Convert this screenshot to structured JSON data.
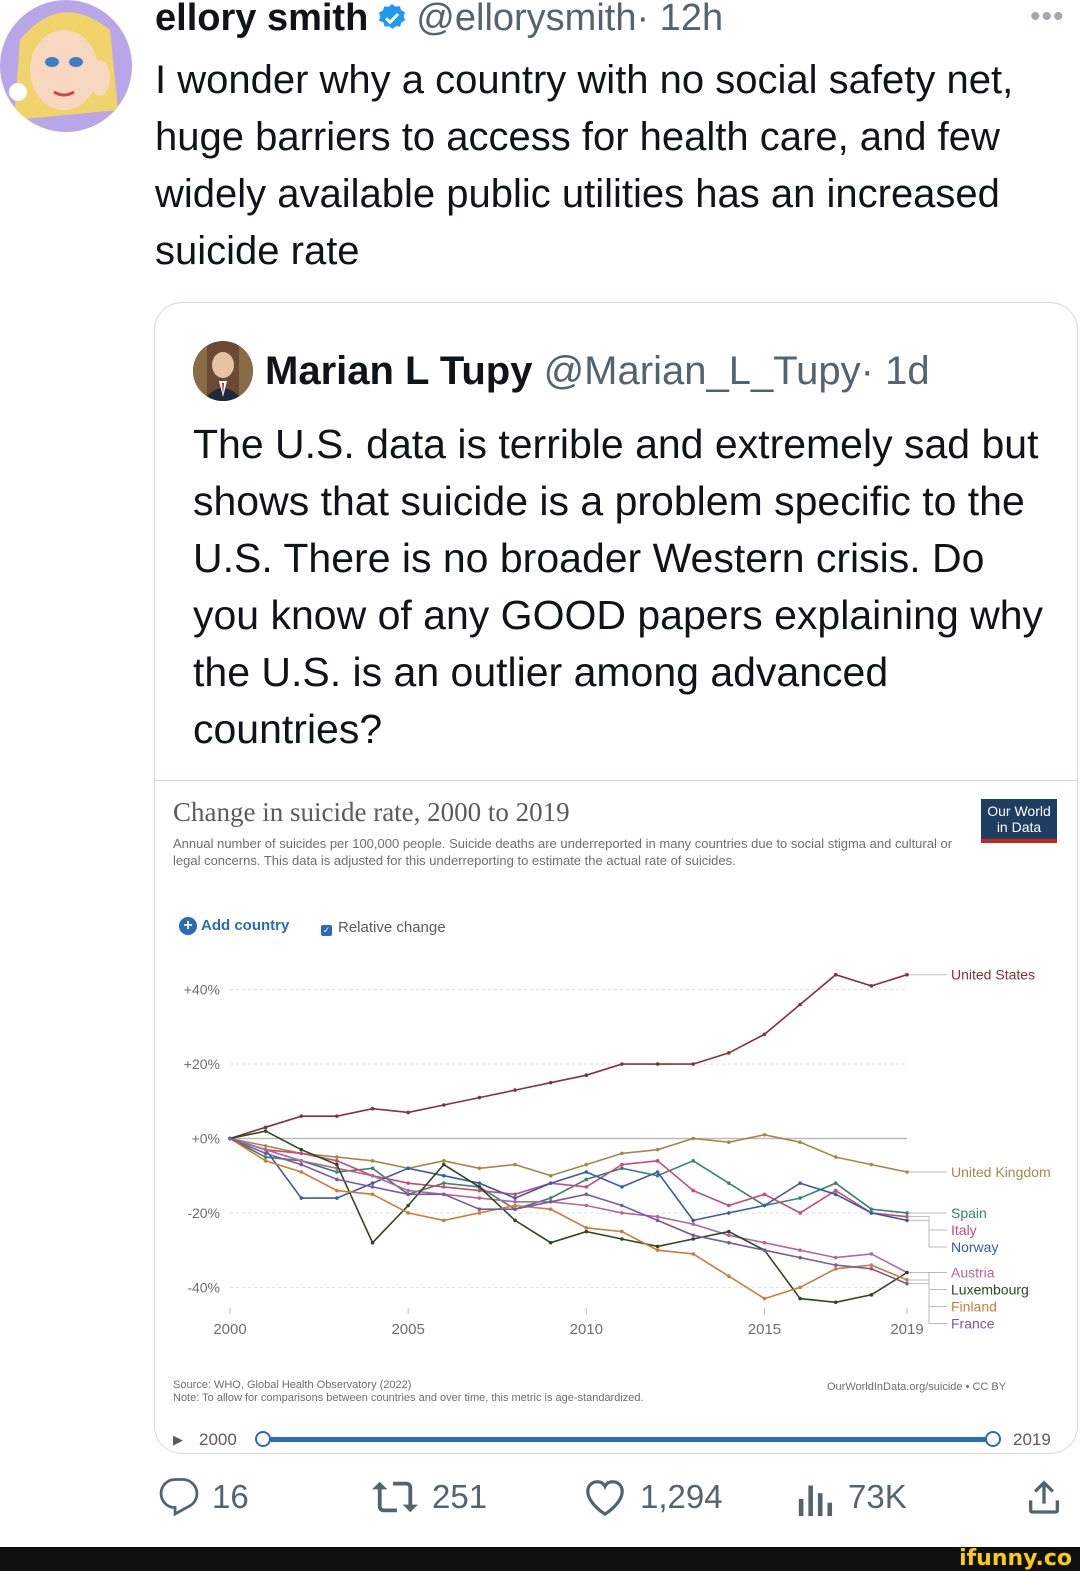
{
  "tweet": {
    "name": "ellory smith",
    "handle": "@ellorysmith",
    "time": "· 12h",
    "more": "•••",
    "text": "I wonder why a country with no social safety net, huge barriers to access for health care, and few widely available public utilities has an increased suicide rate"
  },
  "quote": {
    "name": "Marian L Tupy",
    "handle": "@Marian_L_Tupy",
    "time": "· 1d",
    "text": "The U.S. data is terrible and extremely sad but shows that suicide is a problem specific to the U.S. There is no broader Western crisis. Do you know of any GOOD papers explaining why the U.S. is an outlier among advanced countries?"
  },
  "owid": {
    "title": "Change in suicide rate, 2000 to 2019",
    "subtitle": "Annual number of suicides per 100,000 people. Suicide deaths are underreported in many countries due to social stigma and cultural or legal concerns. This data is adjusted for this underreporting to estimate the actual rate of suicides.",
    "logo_line1": "Our World",
    "logo_line2": "in Data",
    "add_country": "Add country",
    "relative_change": "Relative change",
    "source": "Source: WHO, Global Health Observatory (2022)",
    "note": "Note: To allow for comparisons between countries and over time, this metric is age-standardized.",
    "source_right": "OurWorldInData.org/suicide • CC BY",
    "timeline_start": "2000",
    "timeline_end": "2019"
  },
  "chart_data": {
    "type": "line",
    "title": "Change in suicide rate, 2000 to 2019",
    "subtitle": "Annual number of suicides per 100,000 people. Suicide deaths are underreported in many countries due to social stigma and cultural or legal concerns. This data is adjusted for this underreporting to estimate the actual rate of suicides.",
    "y_ticks": [
      "+40%",
      "+20%",
      "+0%",
      "-20%",
      "-40%"
    ],
    "x_ticks": [
      "2000",
      "2005",
      "2010",
      "2015",
      "2019"
    ],
    "x": [
      2000,
      2001,
      2002,
      2003,
      2004,
      2005,
      2006,
      2007,
      2008,
      2009,
      2010,
      2011,
      2012,
      2013,
      2014,
      2015,
      2016,
      2017,
      2018,
      2019
    ],
    "ylim": [
      -45,
      45
    ],
    "grid": true,
    "series": [
      {
        "name": "United States",
        "color": "#883039",
        "values": [
          0,
          3,
          6,
          6,
          8,
          7,
          9,
          11,
          13,
          15,
          17,
          20,
          20,
          20,
          23,
          28,
          36,
          44,
          41,
          44
        ]
      },
      {
        "name": "United Kingdom",
        "color": "#a2894a",
        "values": [
          0,
          -2,
          -4,
          -5,
          -6,
          -8,
          -6,
          -8,
          -7,
          -10,
          -7,
          -4,
          -3,
          0,
          -1,
          1,
          -1,
          -5,
          -7,
          -9
        ]
      },
      {
        "name": "Spain",
        "color": "#38846e",
        "values": [
          0,
          -5,
          -6,
          -9,
          -8,
          -15,
          -12,
          -13,
          -19,
          -16,
          -11,
          -8,
          -10,
          -6,
          -12,
          -18,
          -16,
          -12,
          -19,
          -20
        ]
      },
      {
        "name": "Italy",
        "color": "#c84a78",
        "values": [
          0,
          -3,
          -4,
          -6,
          -10,
          -12,
          -13,
          -14,
          -15,
          -12,
          -13,
          -7,
          -6,
          -14,
          -18,
          -15,
          -20,
          -14,
          -20,
          -21
        ]
      },
      {
        "name": "Norway",
        "color": "#3b5ba7",
        "values": [
          0,
          -3,
          -16,
          -16,
          -12,
          -8,
          -10,
          -12,
          -16,
          -12,
          -9,
          -13,
          -9,
          -22,
          -20,
          -18,
          -12,
          -15,
          -20,
          -22
        ]
      },
      {
        "name": "Austria",
        "color": "#b4689a",
        "values": [
          0,
          -3,
          -6,
          -8,
          -10,
          -14,
          -15,
          -16,
          -17,
          -17,
          -18,
          -20,
          -21,
          -23,
          -26,
          -28,
          -30,
          -32,
          -31,
          -36
        ]
      },
      {
        "name": "Luxembourg",
        "color": "#2c4a1e",
        "values": [
          0,
          2,
          -3,
          -7,
          -28,
          -18,
          -7,
          -13,
          -22,
          -28,
          -25,
          -27,
          -29,
          -27,
          -25,
          -30,
          -43,
          -44,
          -42,
          -36
        ]
      },
      {
        "name": "Finland",
        "color": "#c87e3a",
        "values": [
          0,
          -6,
          -9,
          -14,
          -15,
          -20,
          -22,
          -20,
          -18,
          -19,
          -24,
          -25,
          -30,
          -31,
          -37,
          -43,
          -40,
          -35,
          -34,
          -38
        ]
      },
      {
        "name": "France",
        "color": "#7a5aa0",
        "values": [
          0,
          -4,
          -7,
          -11,
          -13,
          -15,
          -15,
          -19,
          -19,
          -17,
          -15,
          -18,
          -22,
          -26,
          -28,
          -30,
          -32,
          -34,
          -35,
          -39
        ]
      }
    ]
  },
  "actions": {
    "replies": "16",
    "retweets": "251",
    "likes": "1,294",
    "views": "73K"
  },
  "footer": {
    "brand": "ifunny.co"
  }
}
